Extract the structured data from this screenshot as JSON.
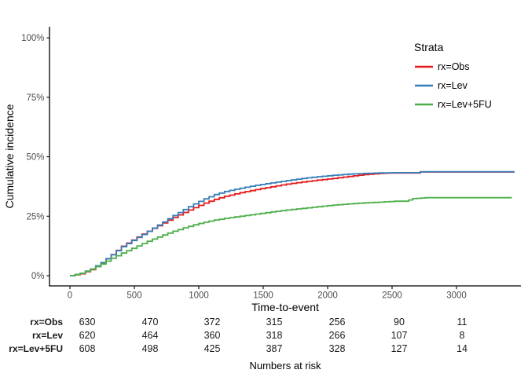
{
  "chart_data": {
    "type": "line",
    "subtype": "cumulative-incidence-step-curves",
    "title": "",
    "xlabel": "Time-to-event",
    "ylabel": "Cumulative incidence",
    "legend_title": "Strata",
    "xlim": [
      0,
      3500
    ],
    "ylim_percent": [
      0,
      100
    ],
    "grid": "off",
    "legend_position": "top-right",
    "x_ticks": {
      "values": [
        0,
        500,
        1000,
        1500,
        2000,
        2500,
        3000
      ],
      "labels": [
        "0",
        "500",
        "1000",
        "1500",
        "2000",
        "2500",
        "3000"
      ]
    },
    "y_ticks": {
      "values": [
        0,
        25,
        50,
        75,
        100
      ],
      "labels": [
        "0%",
        "25%",
        "50%",
        "75%",
        "100%"
      ]
    },
    "series": [
      {
        "name": "rx=Obs",
        "color": "#E41A1C",
        "points": [
          [
            0,
            0
          ],
          [
            80,
            0.8
          ],
          [
            160,
            2.5
          ],
          [
            240,
            5.3
          ],
          [
            320,
            8.9
          ],
          [
            400,
            12.4
          ],
          [
            480,
            15.0
          ],
          [
            560,
            17.5
          ],
          [
            640,
            19.9
          ],
          [
            720,
            22.2
          ],
          [
            800,
            24.5
          ],
          [
            880,
            26.6
          ],
          [
            960,
            28.6
          ],
          [
            1040,
            30.5
          ],
          [
            1120,
            32.1
          ],
          [
            1200,
            33.4
          ],
          [
            1320,
            34.9
          ],
          [
            1440,
            36.2
          ],
          [
            1560,
            37.4
          ],
          [
            1680,
            38.5
          ],
          [
            1800,
            39.4
          ],
          [
            1920,
            40.2
          ],
          [
            2040,
            40.9
          ],
          [
            2160,
            41.7
          ],
          [
            2280,
            42.5
          ],
          [
            2400,
            43.0
          ],
          [
            2500,
            43.2
          ],
          [
            2680,
            43.2
          ],
          [
            2720,
            43.6
          ],
          [
            3450,
            43.6
          ]
        ]
      },
      {
        "name": "rx=Lev",
        "color": "#377EB8",
        "points": [
          [
            0,
            0
          ],
          [
            80,
            1.0
          ],
          [
            160,
            2.8
          ],
          [
            240,
            5.5
          ],
          [
            320,
            8.8
          ],
          [
            400,
            12.2
          ],
          [
            480,
            14.8
          ],
          [
            560,
            17.3
          ],
          [
            640,
            20.0
          ],
          [
            720,
            22.6
          ],
          [
            800,
            25.3
          ],
          [
            880,
            27.8
          ],
          [
            960,
            30.2
          ],
          [
            1040,
            32.3
          ],
          [
            1120,
            34.1
          ],
          [
            1200,
            35.4
          ],
          [
            1320,
            36.8
          ],
          [
            1440,
            38.0
          ],
          [
            1560,
            39.0
          ],
          [
            1680,
            40.0
          ],
          [
            1800,
            40.9
          ],
          [
            1920,
            41.6
          ],
          [
            2040,
            42.2
          ],
          [
            2160,
            42.7
          ],
          [
            2280,
            43.0
          ],
          [
            2400,
            43.2
          ],
          [
            2520,
            43.3
          ],
          [
            2680,
            43.3
          ],
          [
            2720,
            43.7
          ],
          [
            3450,
            43.7
          ]
        ]
      },
      {
        "name": "rx=Lev+5FU",
        "color": "#4DAF4A",
        "points": [
          [
            0,
            0
          ],
          [
            80,
            1.0
          ],
          [
            160,
            2.7
          ],
          [
            240,
            4.9
          ],
          [
            320,
            7.3
          ],
          [
            400,
            9.5
          ],
          [
            480,
            11.5
          ],
          [
            560,
            13.5
          ],
          [
            640,
            15.4
          ],
          [
            720,
            17.1
          ],
          [
            800,
            18.7
          ],
          [
            880,
            20.1
          ],
          [
            960,
            21.4
          ],
          [
            1040,
            22.5
          ],
          [
            1120,
            23.4
          ],
          [
            1200,
            24.1
          ],
          [
            1320,
            25.0
          ],
          [
            1440,
            25.9
          ],
          [
            1560,
            26.8
          ],
          [
            1680,
            27.6
          ],
          [
            1800,
            28.3
          ],
          [
            1920,
            29.0
          ],
          [
            2040,
            29.7
          ],
          [
            2160,
            30.2
          ],
          [
            2280,
            30.6
          ],
          [
            2400,
            30.9
          ],
          [
            2520,
            31.3
          ],
          [
            2600,
            31.3
          ],
          [
            2660,
            32.4
          ],
          [
            2760,
            32.8
          ],
          [
            3430,
            32.8
          ]
        ]
      }
    ],
    "numbers_at_risk": {
      "title": "Numbers at risk",
      "times": [
        0,
        500,
        1000,
        1500,
        2000,
        2500,
        3000
      ],
      "rows": [
        {
          "label": "rx=Obs",
          "values": [
            "630",
            "470",
            "372",
            "315",
            "256",
            "90",
            "11"
          ]
        },
        {
          "label": "rx=Lev",
          "values": [
            "620",
            "464",
            "360",
            "318",
            "266",
            "107",
            "8"
          ]
        },
        {
          "label": "rx=Lev+5FU",
          "values": [
            "608",
            "498",
            "425",
            "387",
            "328",
            "127",
            "14"
          ]
        }
      ]
    }
  }
}
